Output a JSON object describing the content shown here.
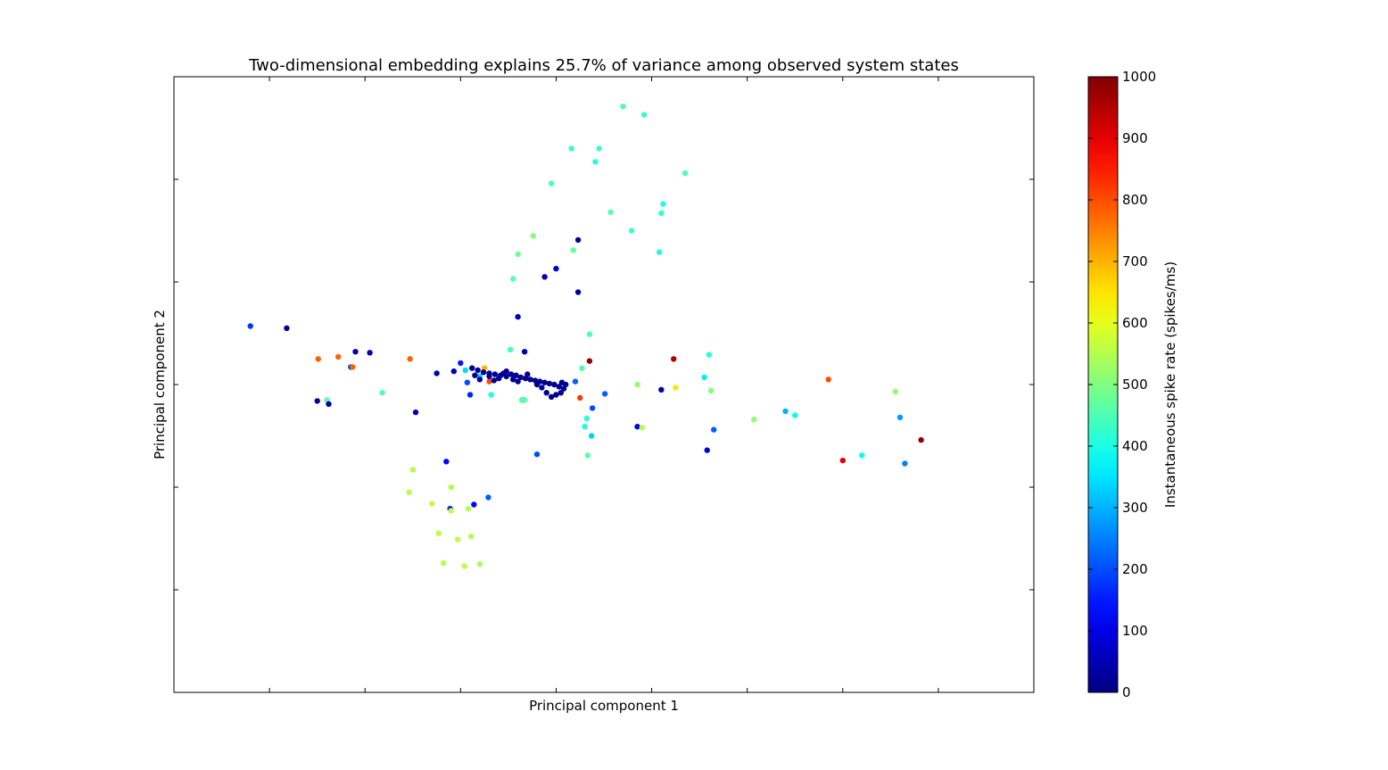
{
  "chart_data": {
    "type": "scatter",
    "title": "Two-dimensional embedding explains 25.7% of variance among observed system states",
    "xlabel": "Principal component 1",
    "ylabel": "Principal component 2",
    "xlim": [
      -4.0,
      5.0
    ],
    "ylim": [
      -3.0,
      3.0
    ],
    "xticks": [
      -3,
      -2,
      -1,
      0,
      1,
      2,
      3,
      4
    ],
    "yticks": [
      -2,
      -1,
      0,
      1,
      2
    ],
    "tick_labels_shown": false,
    "grid": false,
    "colormap": "jet",
    "colorbar": {
      "label": "Instantaneous spike rate (spikes/ms)",
      "min": 0,
      "max": 1000,
      "ticks": [
        "0",
        "100",
        "200",
        "300",
        "400",
        "500",
        "600",
        "700",
        "800",
        "900",
        "1000"
      ]
    },
    "points": [
      {
        "x": 0.7,
        "y": 2.71,
        "c": 450
      },
      {
        "x": 0.92,
        "y": 2.63,
        "c": 420
      },
      {
        "x": 0.16,
        "y": 2.3,
        "c": 430
      },
      {
        "x": 0.45,
        "y": 2.3,
        "c": 440
      },
      {
        "x": 0.41,
        "y": 2.17,
        "c": 410
      },
      {
        "x": 1.35,
        "y": 2.06,
        "c": 450
      },
      {
        "x": -0.05,
        "y": 1.96,
        "c": 440
      },
      {
        "x": 1.12,
        "y": 1.76,
        "c": 400
      },
      {
        "x": 0.57,
        "y": 1.68,
        "c": 460
      },
      {
        "x": 1.1,
        "y": 1.67,
        "c": 420
      },
      {
        "x": 0.79,
        "y": 1.5,
        "c": 430
      },
      {
        "x": -0.24,
        "y": 1.45,
        "c": 500
      },
      {
        "x": 0.23,
        "y": 1.41,
        "c": 30
      },
      {
        "x": 0.18,
        "y": 1.31,
        "c": 470
      },
      {
        "x": 1.08,
        "y": 1.29,
        "c": 400
      },
      {
        "x": -0.4,
        "y": 1.27,
        "c": 480
      },
      {
        "x": 0.0,
        "y": 1.13,
        "c": 80
      },
      {
        "x": -0.12,
        "y": 1.05,
        "c": 60
      },
      {
        "x": -0.45,
        "y": 1.03,
        "c": 460
      },
      {
        "x": 0.23,
        "y": 0.9,
        "c": 30
      },
      {
        "x": -0.4,
        "y": 0.66,
        "c": 60
      },
      {
        "x": -3.2,
        "y": 0.57,
        "c": 180
      },
      {
        "x": -2.82,
        "y": 0.55,
        "c": 20
      },
      {
        "x": 0.35,
        "y": 0.49,
        "c": 450
      },
      {
        "x": -0.48,
        "y": 0.34,
        "c": 440
      },
      {
        "x": -0.33,
        "y": 0.32,
        "c": 50
      },
      {
        "x": 1.6,
        "y": 0.29,
        "c": 410
      },
      {
        "x": -2.1,
        "y": 0.32,
        "c": 50
      },
      {
        "x": -1.95,
        "y": 0.31,
        "c": 60
      },
      {
        "x": -2.49,
        "y": 0.25,
        "c": 780
      },
      {
        "x": -2.28,
        "y": 0.27,
        "c": 780
      },
      {
        "x": -1.53,
        "y": 0.25,
        "c": 780
      },
      {
        "x": 1.23,
        "y": 0.25,
        "c": 950
      },
      {
        "x": 0.35,
        "y": 0.23,
        "c": 980
      },
      {
        "x": -2.15,
        "y": 0.17,
        "c": 200
      },
      {
        "x": -2.13,
        "y": 0.17,
        "c": 780
      },
      {
        "x": -1.0,
        "y": 0.21,
        "c": 150
      },
      {
        "x": -0.75,
        "y": 0.16,
        "c": 700
      },
      {
        "x": 0.27,
        "y": 0.16,
        "c": 450
      },
      {
        "x": -1.25,
        "y": 0.11,
        "c": 50
      },
      {
        "x": -1.07,
        "y": 0.13,
        "c": 60
      },
      {
        "x": -0.95,
        "y": 0.14,
        "c": 340
      },
      {
        "x": -0.8,
        "y": 0.08,
        "c": 340
      },
      {
        "x": 1.55,
        "y": 0.07,
        "c": 360
      },
      {
        "x": 2.85,
        "y": 0.05,
        "c": 800
      },
      {
        "x": -0.93,
        "y": 0.02,
        "c": 200
      },
      {
        "x": -0.7,
        "y": 0.03,
        "c": 800
      },
      {
        "x": 0.2,
        "y": 0.03,
        "c": 220
      },
      {
        "x": -1.82,
        "y": -0.08,
        "c": 460
      },
      {
        "x": 0.85,
        "y": 0.0,
        "c": 520
      },
      {
        "x": 1.25,
        "y": -0.03,
        "c": 650
      },
      {
        "x": 1.62,
        "y": -0.06,
        "c": 500
      },
      {
        "x": 1.1,
        "y": -0.05,
        "c": 50
      },
      {
        "x": 0.51,
        "y": -0.09,
        "c": 220
      },
      {
        "x": -2.4,
        "y": -0.15,
        "c": 470
      },
      {
        "x": -2.5,
        "y": -0.16,
        "c": 30
      },
      {
        "x": -2.38,
        "y": -0.19,
        "c": 40
      },
      {
        "x": 3.55,
        "y": -0.07,
        "c": 520
      },
      {
        "x": -0.9,
        "y": -0.1,
        "c": 160
      },
      {
        "x": 0.25,
        "y": -0.13,
        "c": 820
      },
      {
        "x": -0.35,
        "y": -0.15,
        "c": 240
      },
      {
        "x": -0.68,
        "y": -0.1,
        "c": 400
      },
      {
        "x": -0.36,
        "y": -0.15,
        "c": 450
      },
      {
        "x": -0.33,
        "y": -0.15,
        "c": 470
      },
      {
        "x": 0.38,
        "y": -0.23,
        "c": 200
      },
      {
        "x": -1.47,
        "y": -0.27,
        "c": 60
      },
      {
        "x": 2.07,
        "y": -0.34,
        "c": 520
      },
      {
        "x": 2.4,
        "y": -0.26,
        "c": 300
      },
      {
        "x": 2.5,
        "y": -0.3,
        "c": 380
      },
      {
        "x": 3.6,
        "y": -0.32,
        "c": 280
      },
      {
        "x": 0.32,
        "y": -0.33,
        "c": 420
      },
      {
        "x": 0.3,
        "y": -0.41,
        "c": 400
      },
      {
        "x": 0.85,
        "y": -0.41,
        "c": 100
      },
      {
        "x": 0.9,
        "y": -0.42,
        "c": 550
      },
      {
        "x": 1.65,
        "y": -0.44,
        "c": 220
      },
      {
        "x": 0.37,
        "y": -0.5,
        "c": 330
      },
      {
        "x": 3.82,
        "y": -0.54,
        "c": 980
      },
      {
        "x": 1.58,
        "y": -0.64,
        "c": 80
      },
      {
        "x": -0.2,
        "y": -0.68,
        "c": 200
      },
      {
        "x": 0.33,
        "y": -0.69,
        "c": 460
      },
      {
        "x": 3.0,
        "y": -0.74,
        "c": 900
      },
      {
        "x": 3.2,
        "y": -0.69,
        "c": 380
      },
      {
        "x": 3.65,
        "y": -0.77,
        "c": 250
      },
      {
        "x": -1.15,
        "y": -0.75,
        "c": 130
      },
      {
        "x": -1.5,
        "y": -0.83,
        "c": 550
      },
      {
        "x": -1.54,
        "y": -1.05,
        "c": 560
      },
      {
        "x": -1.1,
        "y": -1.0,
        "c": 550
      },
      {
        "x": -0.71,
        "y": -1.1,
        "c": 220
      },
      {
        "x": -1.3,
        "y": -1.16,
        "c": 560
      },
      {
        "x": -0.86,
        "y": -1.17,
        "c": 130
      },
      {
        "x": -1.11,
        "y": -1.21,
        "c": 150
      },
      {
        "x": -1.1,
        "y": -1.23,
        "c": 560
      },
      {
        "x": -0.92,
        "y": -1.21,
        "c": 550
      },
      {
        "x": -1.23,
        "y": -1.45,
        "c": 560
      },
      {
        "x": -0.89,
        "y": -1.48,
        "c": 550
      },
      {
        "x": -1.03,
        "y": -1.51,
        "c": 560
      },
      {
        "x": -1.18,
        "y": -1.74,
        "c": 550
      },
      {
        "x": -0.8,
        "y": -1.75,
        "c": 540
      },
      {
        "x": -0.96,
        "y": -1.77,
        "c": 560
      },
      {
        "x": -0.88,
        "y": 0.16,
        "c": 20
      },
      {
        "x": -0.82,
        "y": 0.14,
        "c": 30
      },
      {
        "x": -0.76,
        "y": 0.12,
        "c": 10
      },
      {
        "x": -0.7,
        "y": 0.11,
        "c": 20
      },
      {
        "x": -0.64,
        "y": 0.1,
        "c": 10
      },
      {
        "x": -0.58,
        "y": 0.09,
        "c": 20
      },
      {
        "x": -0.52,
        "y": 0.08,
        "c": 10
      },
      {
        "x": -0.47,
        "y": 0.1,
        "c": 20
      },
      {
        "x": -0.42,
        "y": 0.09,
        "c": 10
      },
      {
        "x": -0.37,
        "y": 0.07,
        "c": 20
      },
      {
        "x": -0.32,
        "y": 0.06,
        "c": 10
      },
      {
        "x": -0.27,
        "y": 0.05,
        "c": 20
      },
      {
        "x": -0.22,
        "y": 0.04,
        "c": 10
      },
      {
        "x": -0.17,
        "y": 0.03,
        "c": 20
      },
      {
        "x": -0.12,
        "y": 0.02,
        "c": 10
      },
      {
        "x": -0.07,
        "y": 0.01,
        "c": 20
      },
      {
        "x": -0.02,
        "y": 0.0,
        "c": 10
      },
      {
        "x": 0.03,
        "y": -0.02,
        "c": 20
      },
      {
        "x": 0.08,
        "y": -0.04,
        "c": 10
      },
      {
        "x": 0.05,
        "y": -0.08,
        "c": 20
      },
      {
        "x": 0.0,
        "y": -0.1,
        "c": 10
      },
      {
        "x": -0.05,
        "y": -0.12,
        "c": 20
      },
      {
        "x": -0.1,
        "y": -0.08,
        "c": 10
      },
      {
        "x": -0.6,
        "y": 0.06,
        "c": 30
      },
      {
        "x": -0.55,
        "y": 0.11,
        "c": 20
      },
      {
        "x": -0.65,
        "y": 0.04,
        "c": 10
      },
      {
        "x": -0.7,
        "y": 0.08,
        "c": 30
      },
      {
        "x": -0.8,
        "y": 0.05,
        "c": 20
      },
      {
        "x": -0.85,
        "y": 0.09,
        "c": 10
      },
      {
        "x": -0.45,
        "y": 0.05,
        "c": 10
      },
      {
        "x": -0.4,
        "y": 0.03,
        "c": 30
      },
      {
        "x": -0.2,
        "y": 0.0,
        "c": 10
      },
      {
        "x": -0.15,
        "y": -0.03,
        "c": 30
      },
      {
        "x": 0.1,
        "y": 0.0,
        "c": 20
      },
      {
        "x": 0.06,
        "y": 0.02,
        "c": 10
      },
      {
        "x": -0.52,
        "y": 0.13,
        "c": 20
      },
      {
        "x": -0.3,
        "y": 0.1,
        "c": 10
      }
    ]
  }
}
